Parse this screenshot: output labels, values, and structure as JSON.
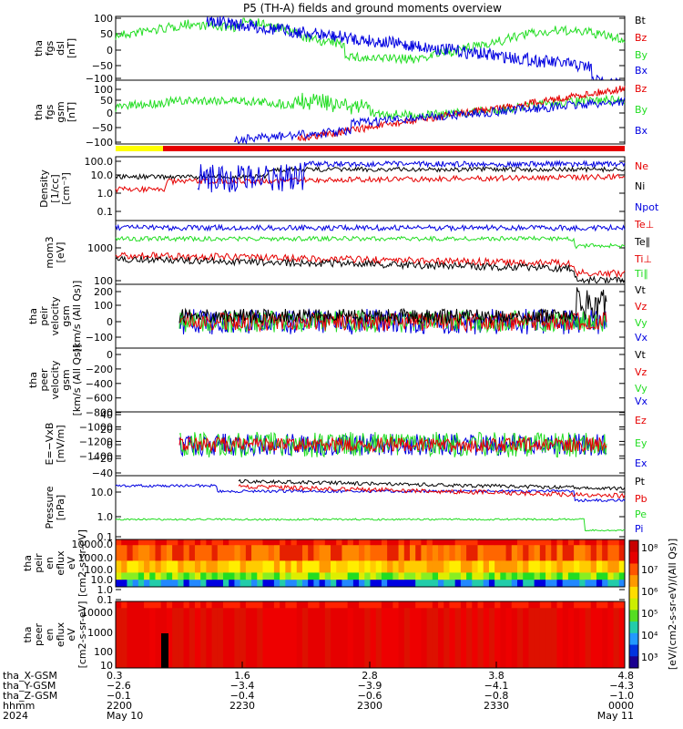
{
  "title": "P5 (TH-A) fields and ground moments overview",
  "colors": {
    "black": "#000000",
    "red": "#e60000",
    "green": "#22dd22",
    "blue": "#0000e0",
    "yellow": "#ffff00"
  },
  "chart_data": [
    {
      "type": "line",
      "id": "fgs_dsl",
      "ylabel": [
        "tha",
        "fgs",
        "dsl",
        "[nT]"
      ],
      "ylim": [
        -100,
        100
      ],
      "yticks": [
        "100",
        "50",
        "0",
        "−50",
        "−100"
      ],
      "series": [
        {
          "name": "Bt",
          "color": "#000000"
        },
        {
          "name": "Bz",
          "color": "#e60000"
        },
        {
          "name": "By",
          "color": "#22dd22"
        },
        {
          "name": "Bx",
          "color": "#0000e0"
        }
      ]
    },
    {
      "type": "line",
      "id": "fgs_gsm",
      "ylabel": [
        "tha",
        "fgs",
        "gsm",
        "[nT]"
      ],
      "ylim": [
        -100,
        100
      ],
      "yticks": [
        "100",
        "50",
        "0",
        "−50",
        "−100"
      ],
      "series": [
        {
          "name": "Bz",
          "color": "#e60000"
        },
        {
          "name": "By",
          "color": "#22dd22"
        },
        {
          "name": "Bx",
          "color": "#0000e0"
        }
      ]
    },
    {
      "type": "line",
      "id": "density",
      "ylabel": [
        "Density",
        "[1/cc]",
        "[cm⁻³]"
      ],
      "scale": "log",
      "ylim": [
        0.05,
        200
      ],
      "yticks": [
        "100.0",
        "10.0",
        "1.0",
        "0.1"
      ],
      "series": [
        {
          "name": "Ne",
          "color": "#e60000"
        },
        {
          "name": "Ni",
          "color": "#000000"
        },
        {
          "name": "Npot",
          "color": "#0000e0"
        }
      ]
    },
    {
      "type": "line",
      "id": "temp",
      "ylabel": [
        "mom3",
        "[eV]"
      ],
      "scale": "log",
      "ylim": [
        80,
        6000
      ],
      "yticks": [
        "1000",
        "100"
      ],
      "series": [
        {
          "name": "Te⊥",
          "color": "#e60000"
        },
        {
          "name": "Te∥",
          "color": "#000000"
        },
        {
          "name": "Ti⊥",
          "color": "#e60000"
        },
        {
          "name": "Ti∥",
          "color": "#22dd22"
        }
      ]
    },
    {
      "type": "line",
      "id": "vel_peir",
      "ylabel": [
        "tha",
        "peir",
        "velocity",
        "gsm",
        "[km/s (All Qs)]"
      ],
      "ylim": [
        -140,
        240
      ],
      "yticks": [
        "200",
        "100",
        "0",
        "−100"
      ],
      "series": [
        {
          "name": "Vt",
          "color": "#000000"
        },
        {
          "name": "Vz",
          "color": "#e60000"
        },
        {
          "name": "Vy",
          "color": "#22dd22"
        },
        {
          "name": "Vx",
          "color": "#0000e0"
        }
      ]
    },
    {
      "type": "line",
      "id": "vel_peer",
      "ylabel": [
        "tha",
        "peer",
        "velocity",
        "gsm",
        "[km/s (All Qs)]"
      ],
      "ylim": [
        -1500,
        20
      ],
      "yticks": [
        "0",
        "−200",
        "−400",
        "−600",
        "−800",
        "−1000",
        "−1200",
        "−1400"
      ],
      "series": [
        {
          "name": "Vt",
          "color": "#000000"
        },
        {
          "name": "Vz",
          "color": "#e60000"
        },
        {
          "name": "Vy",
          "color": "#22dd22"
        },
        {
          "name": "Vx",
          "color": "#0000e0"
        }
      ]
    },
    {
      "type": "line",
      "id": "efield",
      "ylabel": [
        "E=−VxB",
        "[mV/m]"
      ],
      "ylim": [
        -45,
        42
      ],
      "yticks": [
        "40",
        "20",
        "0",
        "−20",
        "−40"
      ],
      "series": [
        {
          "name": "Ez",
          "color": "#e60000"
        },
        {
          "name": "Ey",
          "color": "#22dd22"
        },
        {
          "name": "Ex",
          "color": "#0000e0"
        }
      ]
    },
    {
      "type": "line",
      "id": "pressure",
      "ylabel": [
        "Pressure",
        "[nPa]"
      ],
      "scale": "log",
      "ylim": [
        0.08,
        120
      ],
      "yticks": [
        "10.0",
        "1.0",
        "0.1"
      ],
      "series": [
        {
          "name": "Pt",
          "color": "#000000"
        },
        {
          "name": "Pb",
          "color": "#e60000"
        },
        {
          "name": "Pe",
          "color": "#22dd22"
        },
        {
          "name": "Pi",
          "color": "#0000e0"
        }
      ]
    },
    {
      "type": "heatmap",
      "id": "peir_spec",
      "ylabel": [
        "tha",
        "peir",
        "en",
        "eflux",
        "eV",
        "[cm2-s-sr-eV]"
      ],
      "scale": "log",
      "yticks": [
        "10000.0",
        "1000.0",
        "100.0",
        "10.0",
        "1.0",
        "0.1"
      ]
    },
    {
      "type": "heatmap",
      "id": "peer_spec",
      "ylabel": [
        "tha",
        "peer",
        "en",
        "eflux",
        "eV",
        "[cm2-s-sr-eV]"
      ],
      "scale": "log",
      "yticks": [
        "10000",
        "1000",
        "100",
        "10"
      ]
    }
  ],
  "colorbar": {
    "label": "[eV/(cm2-s-sr-eV)/(All Qs)]",
    "ticks": [
      "10⁸",
      "10⁷",
      "10⁶",
      "10⁵",
      "10⁴",
      "10³"
    ]
  },
  "xaxis": {
    "rows": [
      {
        "label": "tha_X-GSM",
        "values": [
          "0.3",
          "1.6",
          "2.8",
          "3.8",
          "4.8"
        ]
      },
      {
        "label": "tha_Y-GSM",
        "values": [
          "−2.6",
          "−3.4",
          "−3.9",
          "−4.1",
          "−4.3"
        ]
      },
      {
        "label": "tha_Z-GSM",
        "values": [
          "−0.1",
          "−0.4",
          "−0.6",
          "−0.8",
          "−1.0"
        ]
      },
      {
        "label": "hhmm",
        "values": [
          "2200",
          "2230",
          "2300",
          "2330",
          "0000"
        ]
      },
      {
        "label": "2024",
        "values": [
          "May 10",
          "",
          "",
          "",
          "May 11"
        ]
      }
    ]
  }
}
